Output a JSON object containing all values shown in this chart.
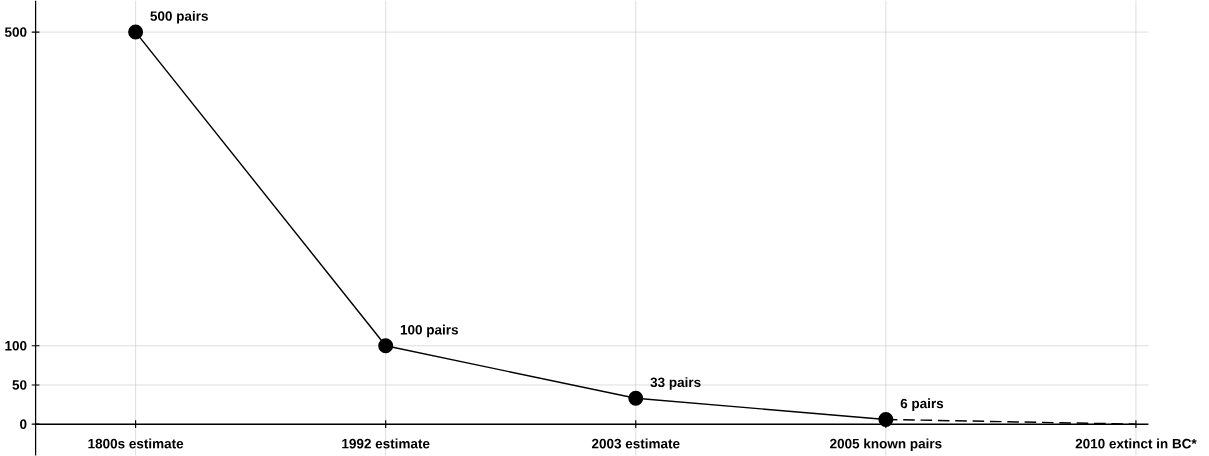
{
  "chart_data": {
    "type": "line",
    "categories": [
      "1800s estimate",
      "1992 estimate",
      "2003 estimate",
      "2005 known pairs",
      "2010 extinct in BC*"
    ],
    "series": [
      {
        "color": "#000000",
        "values": [
          500,
          100,
          33,
          6,
          null
        ],
        "line_style": "solid",
        "marker": "circle",
        "value_labels": [
          "500 pairs",
          "100 pairs",
          "33 pairs",
          "6 pairs",
          null
        ]
      },
      {
        "color": "#000000",
        "values": [
          null,
          null,
          null,
          6,
          0
        ],
        "line_style": "dashed",
        "marker": "none"
      }
    ],
    "ylim": [
      -40,
      540
    ],
    "yticks": [
      0,
      50,
      100,
      500
    ],
    "grid": true
  }
}
